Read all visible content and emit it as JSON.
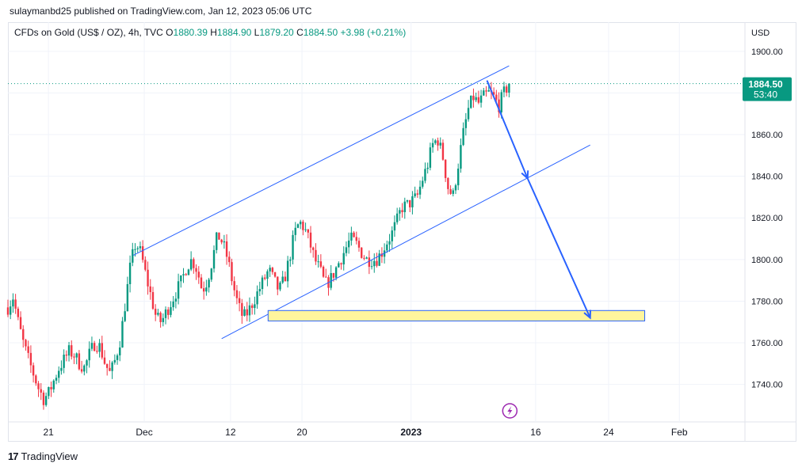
{
  "header": {
    "published": "sulaymanbd25 published on TradingView.com, Jan 12, 2023 05:06 UTC"
  },
  "symbol": {
    "name": "CFDs on Gold (US$ / OZ), 4h, TVC",
    "o_label": "O",
    "o": "1880.39",
    "h_label": "H",
    "h": "1884.90",
    "l_label": "L",
    "l": "1879.20",
    "c_label": "C",
    "c": "1884.50",
    "change": "+3.98 (+0.21%)"
  },
  "price_badge": {
    "price": "1884.50",
    "countdown": "53:40"
  },
  "footer": {
    "brand": "TradingView"
  },
  "colors": {
    "up": "#089981",
    "down": "#f23645",
    "line": "#2962ff",
    "zone": "#fff59d",
    "badge": "#089981"
  },
  "chart_data": {
    "type": "candlestick",
    "currency_label": "USD",
    "y_ticks": [
      "1900.00",
      "1880.00",
      "1860.00",
      "1840.00",
      "1820.00",
      "1800.00",
      "1780.00",
      "1760.00",
      "1740.00"
    ],
    "ylim": [
      1722,
      1914
    ],
    "x_ticks": [
      "21",
      "Dec",
      "12",
      "20",
      "2023",
      "16",
      "24",
      "Feb"
    ],
    "last_price": 1884.5,
    "channel_upper": [
      [
        0.17,
        1802
      ],
      [
        0.68,
        1893
      ]
    ],
    "channel_lower": [
      [
        0.29,
        1762
      ],
      [
        0.79,
        1855
      ]
    ],
    "support_zone": [
      1770.5,
      1775.5
    ],
    "projection": [
      [
        0.65,
        1886
      ],
      [
        0.705,
        1839
      ],
      [
        0.79,
        1772
      ]
    ],
    "price_path": [
      1777,
      1782,
      1770,
      1760,
      1752,
      1745,
      1738,
      1733,
      1736,
      1742,
      1748,
      1752,
      1756,
      1754,
      1750,
      1748,
      1755,
      1760,
      1758,
      1750,
      1745,
      1752,
      1762,
      1780,
      1798,
      1808,
      1803,
      1792,
      1782,
      1772,
      1770,
      1775,
      1780,
      1785,
      1790,
      1797,
      1800,
      1795,
      1785,
      1790,
      1800,
      1812,
      1808,
      1800,
      1788,
      1778,
      1772,
      1775,
      1780,
      1785,
      1790,
      1795,
      1790,
      1785,
      1790,
      1800,
      1812,
      1818,
      1815,
      1808,
      1800,
      1795,
      1788,
      1790,
      1795,
      1800,
      1805,
      1810,
      1808,
      1804,
      1800,
      1800,
      1800,
      1803,
      1808,
      1812,
      1818,
      1825,
      1826,
      1828,
      1830,
      1838,
      1845,
      1855,
      1858,
      1850,
      1835,
      1830,
      1845,
      1860,
      1872,
      1878,
      1875,
      1878,
      1880,
      1878,
      1874,
      1880,
      1884.5
    ]
  }
}
